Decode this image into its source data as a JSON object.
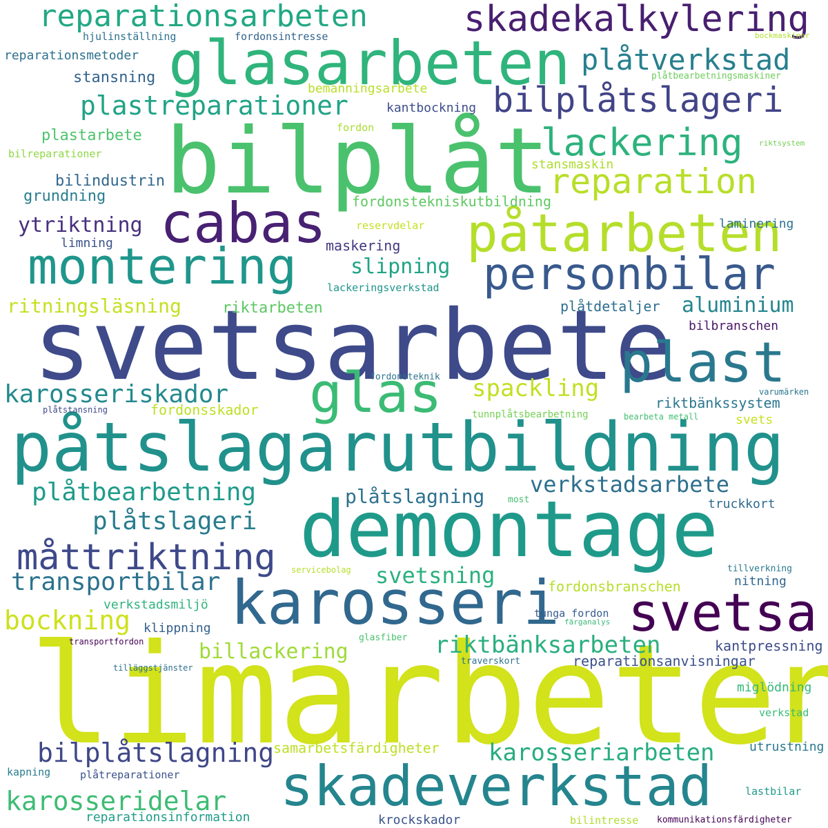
{
  "words": [
    {
      "text": "limarbeten",
      "color": "#d2e21b"
    },
    {
      "text": "svetsarbete",
      "color": "#3e4a89"
    },
    {
      "text": "påtslagarutbildning",
      "color": "#21918c"
    },
    {
      "text": "bilplåt",
      "color": "#4ac16d"
    },
    {
      "text": "demontage",
      "color": "#1f9a8a"
    },
    {
      "text": "glasarbeten",
      "color": "#2fb47c"
    },
    {
      "text": "skadeverkstad",
      "color": "#25858e"
    },
    {
      "text": "karosseri",
      "color": "#31688e"
    },
    {
      "text": "påtarbeten",
      "color": "#b5de2b"
    },
    {
      "text": "plast",
      "color": "#2a788e"
    },
    {
      "text": "montering",
      "color": "#1f968b"
    },
    {
      "text": "personbilar",
      "color": "#38598c"
    },
    {
      "text": "cabas",
      "color": "#482173"
    },
    {
      "text": "svetsa",
      "color": "#440154"
    },
    {
      "text": "glas",
      "color": "#3bbb75"
    },
    {
      "text": "skadekalkylering",
      "color": "#481f70"
    },
    {
      "text": "måttriktning",
      "color": "#3e4989"
    },
    {
      "text": "reparationsarbeten",
      "color": "#22a884"
    },
    {
      "text": "bilplåtslageri",
      "color": "#414487"
    },
    {
      "text": "lackering",
      "color": "#2db27d"
    },
    {
      "text": "reparation",
      "color": "#b8de29"
    },
    {
      "text": "plåtverkstad",
      "color": "#277f8e"
    },
    {
      "text": "plastreparationer",
      "color": "#20a386"
    },
    {
      "text": "karosseriskador",
      "color": "#23898e"
    },
    {
      "text": "plåtbearbetning",
      "color": "#1e9b8a"
    },
    {
      "text": "transportbilar",
      "color": "#2c728e"
    },
    {
      "text": "bilplåtslagning",
      "color": "#3f4788"
    },
    {
      "text": "karosseridelar",
      "color": "#3dbc74"
    },
    {
      "text": "riktbänksarbeten",
      "color": "#29af7f"
    },
    {
      "text": "plåtslageri",
      "color": "#287c8e"
    },
    {
      "text": "verkstadsarbete",
      "color": "#2e6f8e"
    },
    {
      "text": "karosseriarbeten",
      "color": "#27ad81"
    },
    {
      "text": "bockning",
      "color": "#cde11d"
    },
    {
      "text": "spackling",
      "color": "#c2df23"
    },
    {
      "text": "svetsning",
      "color": "#2ab07f"
    },
    {
      "text": "billackering",
      "color": "#a0da39"
    },
    {
      "text": "slipning",
      "color": "#20a486"
    },
    {
      "text": "aluminium",
      "color": "#24868e"
    },
    {
      "text": "ytriktning",
      "color": "#472f7d"
    },
    {
      "text": "ritningsläsning",
      "color": "#c5e021"
    },
    {
      "text": "plåtslagning",
      "color": "#2d718e"
    },
    {
      "text": "samarbetsfärdigheter",
      "color": "#bddf26"
    },
    {
      "text": "reparationsanvisningar",
      "color": "#3b528b"
    },
    {
      "text": "riktbänkssystem",
      "color": "#2a768e"
    },
    {
      "text": "plastarbete",
      "color": "#4ec36b"
    },
    {
      "text": "stansning",
      "color": "#33638d"
    },
    {
      "text": "bilindustrin",
      "color": "#31678e"
    },
    {
      "text": "grundning",
      "color": "#287d8e"
    },
    {
      "text": "fordonstekniskutbildning",
      "color": "#5ec962"
    },
    {
      "text": "riktarbeten",
      "color": "#5cc863"
    },
    {
      "text": "plåtdetaljer",
      "color": "#2e6e8e"
    },
    {
      "text": "fordonsbranschen",
      "color": "#b5de2b"
    },
    {
      "text": "fordonsskador",
      "color": "#bddf26"
    },
    {
      "text": "kantpressning",
      "color": "#3e4c8a"
    },
    {
      "text": "maskering",
      "color": "#453781"
    },
    {
      "text": "bemanningsarbete",
      "color": "#b8de29"
    },
    {
      "text": "kantbockning",
      "color": "#3d4e8a"
    },
    {
      "text": "reparationsmetoder",
      "color": "#2d708e"
    },
    {
      "text": "laminering",
      "color": "#2c738e"
    },
    {
      "text": "stansmaskin",
      "color": "#addc30"
    },
    {
      "text": "limning",
      "color": "#3b528b"
    },
    {
      "text": "klippning",
      "color": "#34608d"
    },
    {
      "text": "verkstadsmiljö",
      "color": "#2fb47c"
    },
    {
      "text": "bilbranschen",
      "color": "#481769"
    },
    {
      "text": "truckkort",
      "color": "#2f6b8e"
    },
    {
      "text": "nitning",
      "color": "#31688e"
    },
    {
      "text": "krockskador",
      "color": "#3a548c"
    },
    {
      "text": "reparationsinformation",
      "color": "#1e9c89"
    },
    {
      "text": "miglödning",
      "color": "#35b779"
    },
    {
      "text": "utrustning",
      "color": "#2a788e"
    },
    {
      "text": "hjulinställning",
      "color": "#2d708e"
    },
    {
      "text": "fordonsintresse",
      "color": "#33638d"
    },
    {
      "text": "fordon",
      "color": "#aadc32"
    },
    {
      "text": "bilreparationer",
      "color": "#8fd744"
    },
    {
      "text": "reservdelar",
      "color": "#c5e021"
    },
    {
      "text": "lackeringsverkstad",
      "color": "#1f958b"
    },
    {
      "text": "svets",
      "color": "#c8e020"
    },
    {
      "text": "tunga fordon",
      "color": "#375b8d"
    },
    {
      "text": "verkstad",
      "color": "#3aba76"
    },
    {
      "text": "lastbilar",
      "color": "#1f998a"
    },
    {
      "text": "kapning",
      "color": "#287d8e"
    },
    {
      "text": "plåtreparationer",
      "color": "#3b528b"
    },
    {
      "text": "bilintresse",
      "color": "#b0dd2f"
    },
    {
      "text": "kommunikationsfärdigheter",
      "color": "#440154"
    },
    {
      "text": "tillverkning",
      "color": "#2a788e"
    },
    {
      "text": "plåtbearbetningsmaskiner",
      "color": "#6ccd5a"
    },
    {
      "text": "bockmaskiner",
      "color": "#b2dd2d"
    },
    {
      "text": "riktsystem",
      "color": "#74d055"
    },
    {
      "text": "tunnplåtsbearbetning",
      "color": "#75d054"
    },
    {
      "text": "bearbeta metall",
      "color": "#42be71"
    },
    {
      "text": "varumärken",
      "color": "#2a768e"
    },
    {
      "text": "most",
      "color": "#44bf70"
    },
    {
      "text": "servicebolag",
      "color": "#b5de2b"
    },
    {
      "text": "fordonsteknik",
      "color": "#2c738e"
    },
    {
      "text": "plåtstansning",
      "color": "#3e4989"
    },
    {
      "text": "transportfordon",
      "color": "#440154"
    },
    {
      "text": "tilläggstjänster",
      "color": "#2d708e"
    },
    {
      "text": "glasfiber",
      "color": "#4ac16d"
    },
    {
      "text": "traverskort",
      "color": "#2c738e"
    },
    {
      "text": "färganalys",
      "color": "#38b977"
    }
  ]
}
